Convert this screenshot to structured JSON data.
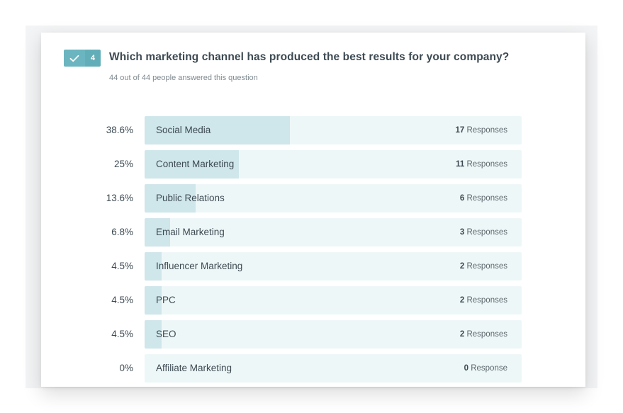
{
  "question": {
    "number": "4",
    "title": "Which marketing channel has produced the best results for your company?",
    "answered": "44 out of 44 people answered this question"
  },
  "colors": {
    "badge": "#6ab5bf",
    "bar_fill": "#cfe6ea",
    "bar_track": "#eef7f8"
  },
  "chart_data": {
    "type": "bar",
    "categories": [
      "Social Media",
      "Content Marketing",
      "Public Relations",
      "Email Marketing",
      "Influencer Marketing",
      "PPC",
      "SEO",
      "Affiliate Marketing"
    ],
    "values": [
      38.6,
      25,
      13.6,
      6.8,
      4.5,
      4.5,
      4.5,
      0
    ],
    "rows": [
      {
        "label": "Social Media",
        "pct": "38.6%",
        "value": 38.6,
        "count": "17",
        "unit": "Responses"
      },
      {
        "label": "Content Marketing",
        "pct": "25%",
        "value": 25,
        "count": "11",
        "unit": "Responses"
      },
      {
        "label": "Public Relations",
        "pct": "13.6%",
        "value": 13.6,
        "count": "6",
        "unit": "Responses"
      },
      {
        "label": "Email Marketing",
        "pct": "6.8%",
        "value": 6.8,
        "count": "3",
        "unit": "Responses"
      },
      {
        "label": "Influencer Marketing",
        "pct": "4.5%",
        "value": 4.5,
        "count": "2",
        "unit": "Responses"
      },
      {
        "label": "PPC",
        "pct": "4.5%",
        "value": 4.5,
        "count": "2",
        "unit": "Responses"
      },
      {
        "label": "SEO",
        "pct": "4.5%",
        "value": 4.5,
        "count": "2",
        "unit": "Responses"
      },
      {
        "label": "Affiliate Marketing",
        "pct": "0%",
        "value": 0,
        "count": "0",
        "unit": "Response"
      }
    ]
  }
}
